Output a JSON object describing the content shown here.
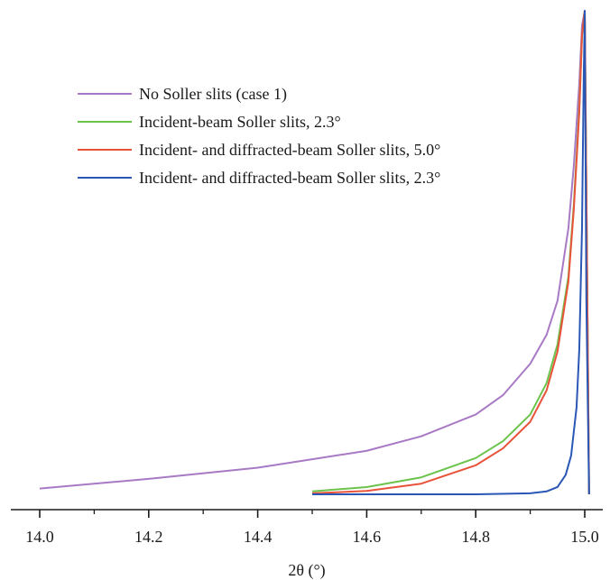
{
  "chart_data": {
    "type": "line",
    "title": "",
    "xlabel": "2θ (°)",
    "ylabel": "",
    "xlim": [
      13.8,
      15.1
    ],
    "xticks": [
      14.0,
      14.2,
      14.4,
      14.6,
      14.8,
      15.0
    ],
    "xtick_labels": [
      "14.0",
      "14.2",
      "14.4",
      "14.6",
      "14.8",
      "15.0"
    ],
    "grid": false,
    "legend_position": "top-left",
    "series": [
      {
        "name": "No Soller slits (case 1)",
        "color": "#a879c4",
        "x": [
          14.0,
          14.2,
          14.4,
          14.6,
          14.7,
          14.8,
          14.85,
          14.9,
          14.93,
          14.95,
          14.97,
          14.98,
          14.99,
          14.995,
          15.0,
          15.008
        ],
        "y": [
          0.012,
          0.032,
          0.055,
          0.09,
          0.12,
          0.165,
          0.205,
          0.27,
          0.33,
          0.4,
          0.55,
          0.68,
          0.85,
          0.97,
          1.0,
          0.0
        ]
      },
      {
        "name": "Incident-beam Soller slits, 2.3°",
        "color": "#6cc34c",
        "x": [
          14.5,
          14.6,
          14.7,
          14.8,
          14.85,
          14.9,
          14.93,
          14.95,
          14.97,
          14.98,
          14.99,
          14.995,
          15.0,
          15.008
        ],
        "y": [
          0.006,
          0.015,
          0.035,
          0.075,
          0.11,
          0.165,
          0.23,
          0.31,
          0.45,
          0.6,
          0.8,
          0.95,
          1.0,
          0.0
        ]
      },
      {
        "name": "Incident- and diffracted-beam Soller slits, 5.0°",
        "color": "#e8533a",
        "x": [
          14.5,
          14.6,
          14.7,
          14.8,
          14.85,
          14.9,
          14.93,
          14.95,
          14.97,
          14.98,
          14.99,
          14.995,
          15.0,
          15.008
        ],
        "y": [
          0.002,
          0.007,
          0.022,
          0.06,
          0.095,
          0.15,
          0.215,
          0.295,
          0.44,
          0.59,
          0.79,
          0.95,
          1.0,
          0.0
        ]
      },
      {
        "name": "Incident- and diffracted-beam Soller slits, 2.3°",
        "color": "#2a57b5",
        "x": [
          14.5,
          14.8,
          14.9,
          14.93,
          14.95,
          14.965,
          14.975,
          14.985,
          14.99,
          14.995,
          14.998,
          15.0,
          15.003,
          15.008
        ],
        "y": [
          0.0,
          0.0,
          0.002,
          0.006,
          0.015,
          0.04,
          0.08,
          0.18,
          0.3,
          0.55,
          0.85,
          1.0,
          0.4,
          0.0
        ]
      }
    ]
  }
}
